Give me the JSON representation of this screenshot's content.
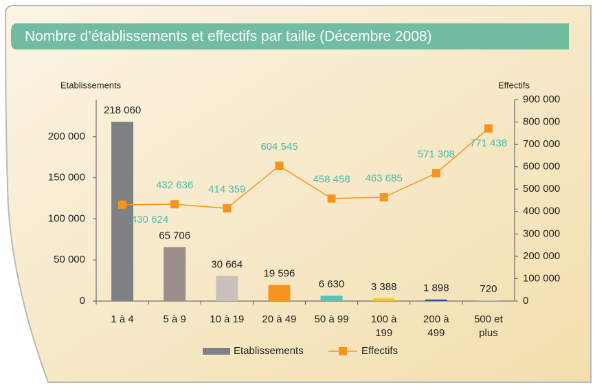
{
  "chart_data": {
    "type": "bar",
    "title": "Nombre d’établissements et effectifs par taille (Décembre 2008)",
    "y_label": "Etablissements",
    "y2_label": "Effectifs",
    "categories": [
      "1 à 4",
      "5 à 9",
      "10 à 19",
      "20 à 49",
      "50 à 99",
      "100 à 199",
      "200 à 499",
      "500 et plus"
    ],
    "series": [
      {
        "name": "Etablissements",
        "color": "#7f8285",
        "colors": [
          "#7f8285",
          "#9b8e8b",
          "#cbbfbd",
          "#f7941d",
          "#5bc2b6",
          "#f5c33b",
          "#1f5a99",
          "#86bcd6"
        ],
        "values": [
          218060,
          65706,
          30664,
          19596,
          6630,
          3388,
          1898,
          720
        ],
        "value_labels": [
          "218 060",
          "65 706",
          "30 664",
          "19 596",
          "6 630",
          "3 388",
          "1 898",
          "720"
        ]
      },
      {
        "name": "Effectifs",
        "axis": "y2",
        "color": "#f7941d",
        "label_color": "#46bcae",
        "values": [
          430624,
          432636,
          414359,
          604545,
          458458,
          463685,
          571308,
          771438
        ],
        "value_labels": [
          "430 624",
          "432 636",
          "414 359",
          "604 545",
          "458 458",
          "463 685",
          "571 308",
          "771 438"
        ]
      }
    ],
    "ylim": [
      0,
      245000
    ],
    "yticks": [
      0,
      {
        "value": 50000,
        "label": "50 000"
      },
      {
        "value": 100000,
        "label": "100 000"
      },
      {
        "value": 150000,
        "label": "150 000"
      },
      {
        "value": 200000,
        "label": "200 000"
      }
    ],
    "y2lim": [
      0,
      900000
    ],
    "y2ticks": [
      0,
      {
        "value": 100000,
        "label": "100 000"
      },
      {
        "value": 200000,
        "label": "200 000"
      },
      {
        "value": 300000,
        "label": "300 000"
      },
      {
        "value": 400000,
        "label": "400 000"
      },
      {
        "value": 500000,
        "label": "500 000"
      },
      {
        "value": 600000,
        "label": "600 000"
      },
      {
        "value": 700000,
        "label": "700 000"
      },
      {
        "value": 800000,
        "label": "800 000"
      },
      {
        "value": 900000,
        "label": "900 000"
      }
    ]
  }
}
